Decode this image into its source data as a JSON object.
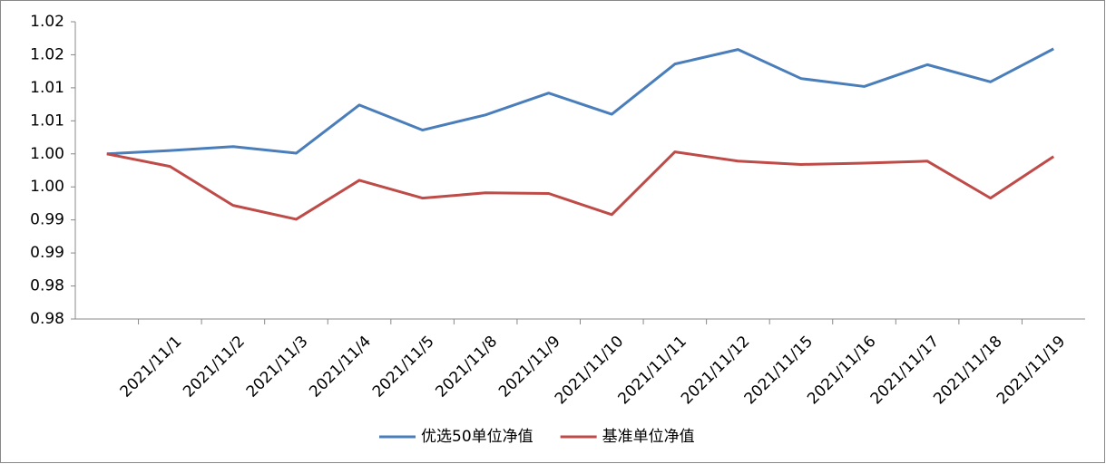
{
  "chart_data": {
    "type": "line",
    "categories": [
      null,
      "2021/11/1",
      "2021/11/2",
      "2021/11/3",
      "2021/11/4",
      "2021/11/5",
      "2021/11/8",
      "2021/11/9",
      "2021/11/10",
      "2021/11/11",
      "2021/11/12",
      "2021/11/15",
      "2021/11/16",
      "2021/11/17",
      "2021/11/18",
      "2021/11/19"
    ],
    "series": [
      {
        "name": "优选50单位净值",
        "color": "#4a7ebb",
        "values": [
          1.005,
          1.0055,
          1.0061,
          1.0051,
          1.0124,
          1.0086,
          1.0109,
          1.0142,
          1.011,
          1.0186,
          1.0208,
          1.0164,
          1.0152,
          1.0185,
          1.0159,
          1.0209
        ]
      },
      {
        "name": "基准单位净值",
        "color": "#be4b48",
        "values": [
          1.005,
          1.0031,
          0.9972,
          0.9951,
          1.001,
          0.9983,
          0.9991,
          0.999,
          0.9958,
          1.0053,
          1.0039,
          1.0034,
          1.0036,
          1.0039,
          0.9983,
          1.0046
        ]
      }
    ],
    "ylim": [
      0.98,
      1.025
    ],
    "yticks": [
      {
        "value": 0.98,
        "label": "0.98"
      },
      {
        "value": 0.985,
        "label": "0.98"
      },
      {
        "value": 0.99,
        "label": "0.99"
      },
      {
        "value": 0.995,
        "label": "0.99"
      },
      {
        "value": 1.0,
        "label": "1.00"
      },
      {
        "value": 1.005,
        "label": "1.00"
      },
      {
        "value": 1.01,
        "label": "1.01"
      },
      {
        "value": 1.015,
        "label": "1.01"
      },
      {
        "value": 1.02,
        "label": "1.02"
      },
      {
        "value": 1.025,
        "label": "1.02"
      }
    ],
    "grid": false,
    "legend": "bottom"
  }
}
